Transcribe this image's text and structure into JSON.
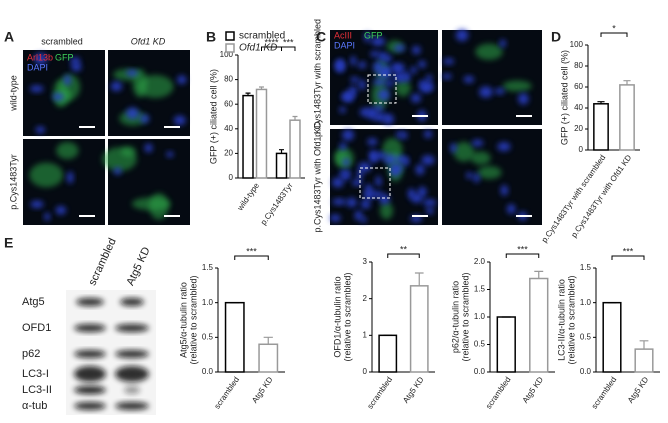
{
  "panels": {
    "A": {
      "label": "A",
      "columns": [
        "scrambled",
        "Ofd1 KD"
      ],
      "rows": [
        "wild-type",
        "p.Cys1483Tyr"
      ],
      "stains": [
        "Arl13b",
        "GFP",
        "DAPI"
      ]
    },
    "C": {
      "label": "C",
      "rows": [
        "p.Cys1483Tyr with scrambled",
        "p.Cys1483Tyr with Ofd1 KD"
      ],
      "stains": [
        "AcIII",
        "GFP",
        "DAPI"
      ]
    },
    "E": {
      "label": "E",
      "columns": [
        "scrambled",
        "Atg5 KD"
      ],
      "rows": [
        "Atg5",
        "OFD1",
        "p62",
        "LC3-I",
        "LC3-II",
        "α-tub"
      ]
    }
  },
  "chart_data": [
    {
      "type": "bar",
      "panel": "B",
      "ylabel": [
        "GFP (+) ciliated cell (%)"
      ],
      "categories": [
        "wild-type",
        "p.Cys1483Tyr"
      ],
      "series": [
        {
          "name": "scrambled",
          "color": "#000000",
          "values": [
            67,
            20
          ],
          "errors": [
            2,
            3
          ]
        },
        {
          "name": "Ofd1 KD",
          "color": "#999999",
          "values": [
            72,
            47
          ],
          "errors": [
            2,
            3
          ]
        }
      ],
      "ylim": [
        0,
        100
      ],
      "yticks": [
        0,
        20,
        40,
        60,
        80,
        100
      ],
      "annotations": [
        "****",
        "***"
      ]
    },
    {
      "type": "bar",
      "panel": "D",
      "ylabel": [
        "GFP (+) ciliated cell (%)"
      ],
      "categories": [
        "p.Cys1483Tyr with scrambled",
        "p.Cys1483Tyr with Ofd1 KD"
      ],
      "values": [
        44,
        62
      ],
      "errors": [
        2,
        4
      ],
      "colors": [
        "#000000",
        "#999999"
      ],
      "ylim": [
        0,
        100
      ],
      "yticks": [
        0,
        20,
        40,
        60,
        80,
        100
      ],
      "annotations": [
        "*"
      ]
    },
    {
      "type": "bar",
      "ylabel": [
        "Atg5/α-tubulin ratio",
        "(relative to scrambled)"
      ],
      "categories": [
        "scrambled",
        "Atg5 KD"
      ],
      "values": [
        1.0,
        0.4
      ],
      "errors": [
        0,
        0.1
      ],
      "colors": [
        "#000000",
        "#999999"
      ],
      "ylim": [
        0,
        1.5
      ],
      "yticks": [
        {
          "value": 0,
          "label": "0.0"
        },
        0.5,
        {
          "value": 1,
          "label": "1.0"
        },
        1.5
      ],
      "annotations": [
        "***"
      ]
    },
    {
      "type": "bar",
      "ylabel": [
        "OFD1/α-tubulin ratio",
        "(relative to scrambled)"
      ],
      "categories": [
        "scrambled",
        "Atg5 KD"
      ],
      "values": [
        1,
        2.35
      ],
      "errors": [
        0,
        0.35
      ],
      "colors": [
        "#000000",
        "#999999"
      ],
      "ylim": [
        0,
        3
      ],
      "yticks": [
        0,
        1,
        2,
        3
      ],
      "annotations": [
        "**"
      ]
    },
    {
      "type": "bar",
      "ylabel": [
        "p62/α-tubulin ratio",
        "(relative to scrambled)"
      ],
      "categories": [
        "scrambled",
        "Atg5 KD"
      ],
      "values": [
        1.0,
        1.7
      ],
      "errors": [
        0,
        0.13
      ],
      "colors": [
        "#000000",
        "#999999"
      ],
      "ylim": [
        0,
        2
      ],
      "yticks": [
        {
          "value": 0,
          "label": "0.0"
        },
        0.5,
        {
          "value": 1,
          "label": "1.0"
        },
        1.5,
        {
          "value": 2,
          "label": "2.0"
        }
      ],
      "annotations": [
        "***"
      ]
    },
    {
      "type": "bar",
      "ylabel": [
        "LC3-II/α-tubulin ratio",
        "(relative to scrambled)"
      ],
      "categories": [
        "scrambled",
        "Atg5 KD"
      ],
      "values": [
        1.0,
        0.33
      ],
      "errors": [
        0,
        0.12
      ],
      "colors": [
        "#000000",
        "#999999"
      ],
      "ylim": [
        0,
        1.5
      ],
      "yticks": [
        {
          "value": 0,
          "label": "0.0"
        },
        0.5,
        {
          "value": 1,
          "label": "1.0"
        },
        1.5
      ],
      "annotations": [
        "***"
      ]
    }
  ]
}
